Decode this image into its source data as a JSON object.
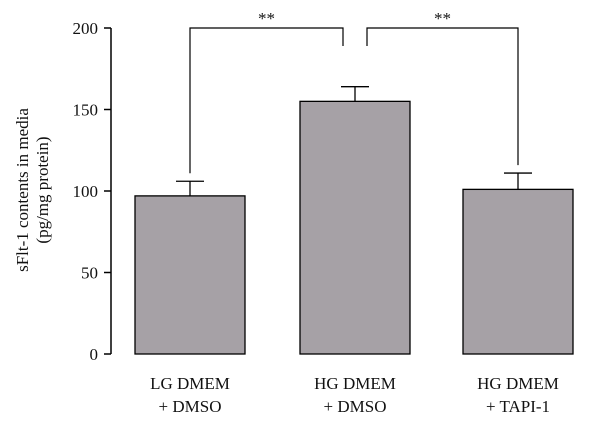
{
  "chart_data": {
    "type": "bar",
    "ylabel_lines": [
      "sFlt-1 contents in media",
      "(pg/mg protein)"
    ],
    "xlabel": "",
    "ylim": [
      0,
      200
    ],
    "yticks": [
      0,
      50,
      100,
      150,
      200
    ],
    "categories": [
      [
        "LG DMEM",
        "+ DMSO"
      ],
      [
        "HG DMEM",
        "+ DMSO"
      ],
      [
        "HG DMEM",
        "+ TAPI-1"
      ]
    ],
    "values": [
      97,
      155,
      101
    ],
    "errors": [
      9,
      9,
      10
    ],
    "significance": [
      {
        "from": 0,
        "to": 1,
        "label": "**"
      },
      {
        "from": 1,
        "to": 2,
        "label": "**"
      }
    ],
    "colors": {
      "bar": "#a6a1a6",
      "stroke": "#000000"
    },
    "grid": false,
    "legend": "none"
  }
}
